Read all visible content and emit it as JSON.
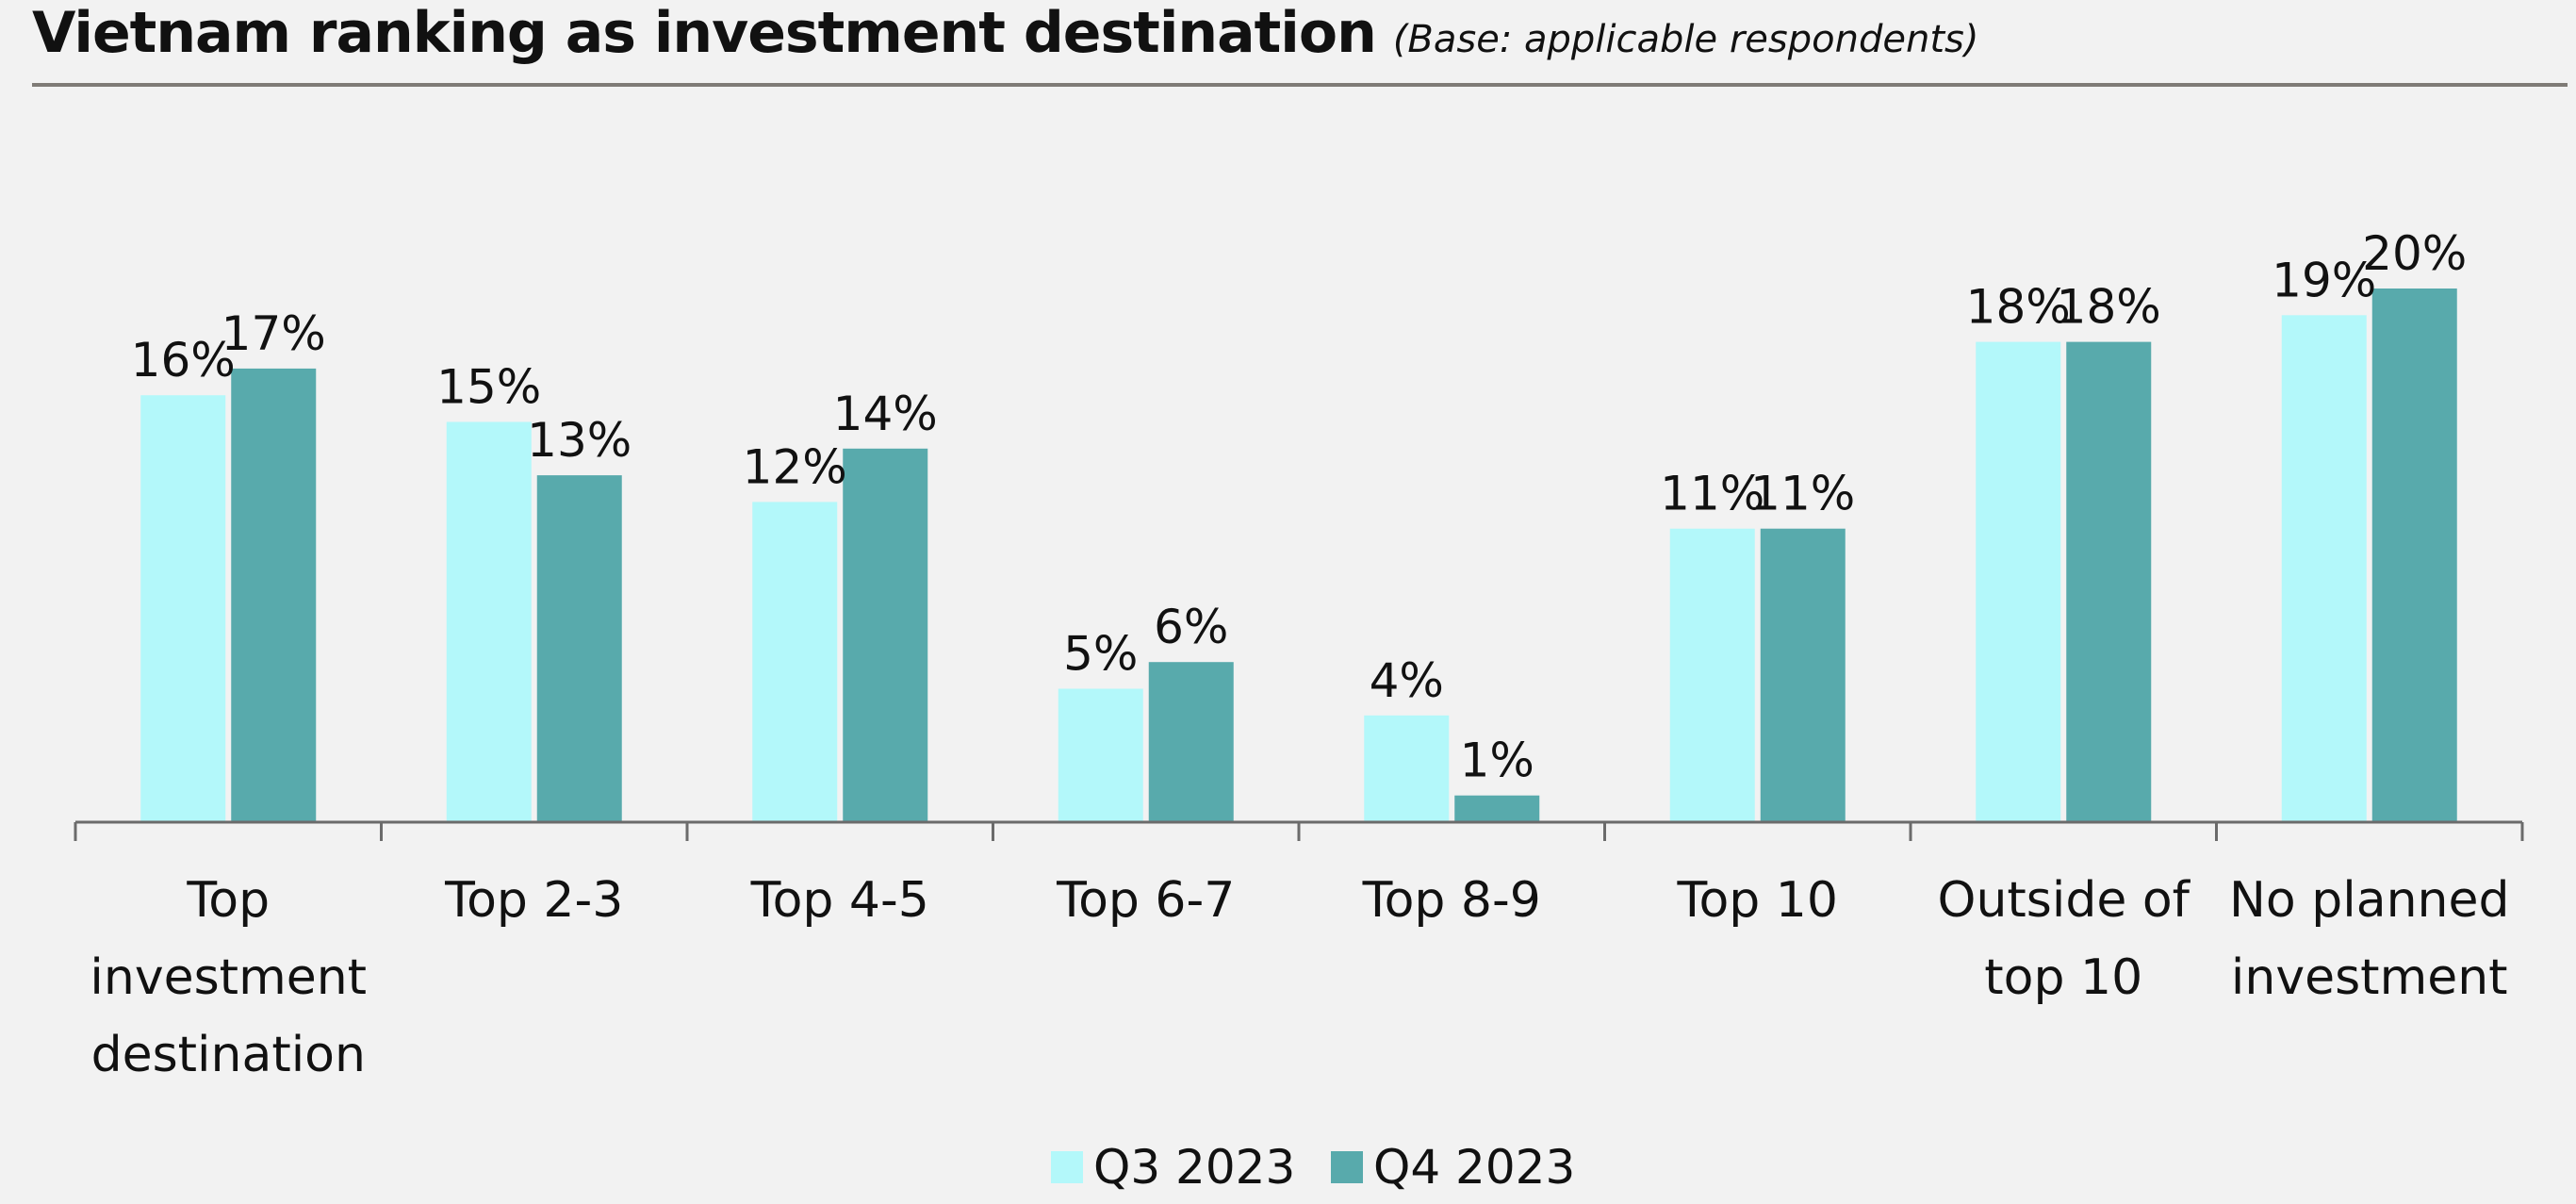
{
  "chart_data": {
    "type": "bar",
    "title": "Vietnam ranking as investment destination",
    "subtitle": "(Base: applicable respondents)",
    "categories": [
      [
        "Top",
        "investment",
        "destination"
      ],
      [
        "Top 2-3"
      ],
      [
        "Top 4-5"
      ],
      [
        "Top 6-7"
      ],
      [
        "Top 8-9"
      ],
      [
        "Top 10"
      ],
      [
        "Outside of",
        "top 10"
      ],
      [
        "No planned",
        "investment"
      ]
    ],
    "series": [
      {
        "name": "Q3 2023",
        "color": "#b3f8fa",
        "values": [
          16,
          15,
          12,
          5,
          4,
          11,
          18,
          19
        ],
        "labels": [
          "16%",
          "15%",
          "12%",
          "5%",
          "4%",
          "11%",
          "18%",
          "19%"
        ]
      },
      {
        "name": "Q4 2023",
        "color": "#58aaac",
        "values": [
          17,
          13,
          14,
          6,
          1,
          11,
          18,
          20
        ],
        "labels": [
          "17%",
          "13%",
          "14%",
          "6%",
          "1%",
          "11%",
          "18%",
          "20%"
        ]
      }
    ],
    "xlabel": "",
    "ylabel": "",
    "ylim": [
      0,
      22
    ],
    "grid": false,
    "legend": "bottom-center",
    "axis_color": "#6b6b6b"
  }
}
